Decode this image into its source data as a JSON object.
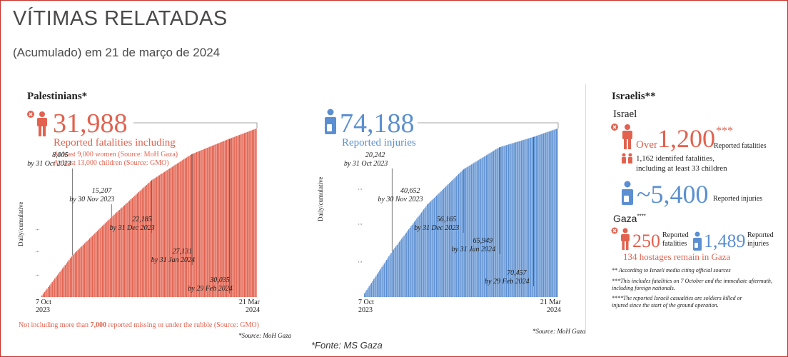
{
  "header": {
    "title": "VÍTIMAS RELATADAS",
    "subtitle": "(Acumulado) em 21 de março de 2024"
  },
  "palestinians": {
    "heading": "Palestinians*",
    "fatalities": "31,988",
    "fatalities_label": "Reported fatalities including",
    "women_note": "At least 9,000 women (Source: MoH Gaza)",
    "children_note": "At least 13,000 children (Source: GMO)",
    "injuries": "74,188",
    "injuries_label": "Reported injuries",
    "missing_prefix": "Not including more than ",
    "missing_count": "7,000",
    "missing_suffix": " reported missing or under the rubble (Source: GMO)",
    "source_left": "*Source: MoH Gaza",
    "source_right": "*Source: MoH Gaza"
  },
  "israelis": {
    "heading": "Israelis**",
    "israel_label": "Israel",
    "over_word": "Over",
    "over_number": "1,200",
    "over_stars": "***",
    "over_label": "Reported fatalities",
    "identified_line1": "1,162 identifed fatalities,",
    "identified_line2": "including at least 33 children",
    "injuries_number": "~5,400",
    "injuries_label": "Reported injuries",
    "gaza_label": "Gaza",
    "gaza_stars": "****",
    "gaza_fatalities": "250",
    "gaza_fatalities_label_1": "Reported",
    "gaza_fatalities_label_2": "fatalities",
    "gaza_injuries": "1,489",
    "gaza_injuries_label_1": "Reported",
    "gaza_injuries_label_2": "injuries",
    "hostages": "134 hostages remain in Gaza",
    "note1": "** According to Israeli media citing official sources",
    "note2a": "***This includes fatalities on 7 October and the immediate aftermath,",
    "note2b": "including foreign nationals.",
    "note3a": "****The reported Israeli casualties are soldiers killed or",
    "note3b": "injured since the start of the ground operation."
  },
  "footer": {
    "fonte": "*Fonte: MS Gaza"
  },
  "colors": {
    "red": "#e2624f",
    "blue": "#5b8fd1",
    "border": "#c8302a"
  },
  "chart_data": [
    {
      "type": "bar",
      "name": "fatalities",
      "ylabel": "Daily/cumulative",
      "x_start": "7 Oct 2023",
      "x_end": "21 Mar 2024",
      "x_start_label": [
        "7 Oct",
        "2023"
      ],
      "x_end_label": [
        "21 Mar",
        "2024"
      ],
      "start_value": 300,
      "end_value": 31988,
      "ylim": [
        0,
        32000
      ],
      "annotations": [
        {
          "date": "31 Oct 2023",
          "value": 8005,
          "value_label": "8,005",
          "date_label": "by 31 Oct 2023"
        },
        {
          "date": "30 Nov 2023",
          "value": 15207,
          "value_label": "15,207",
          "date_label": "by 30 Nov 2023"
        },
        {
          "date": "31 Dec 2023",
          "value": 22185,
          "value_label": "22,185",
          "date_label": "by 31 Dec 2023"
        },
        {
          "date": "31 Jan 2024",
          "value": 27131,
          "value_label": "27,131",
          "date_label": "by 31 Jan 2024"
        },
        {
          "date": "29 Feb 2024",
          "value": 30035,
          "value_label": "30,035",
          "date_label": "by 29 Feb 2024"
        }
      ],
      "color": "#e2624f"
    },
    {
      "type": "bar",
      "name": "injuries",
      "ylabel": "Daily/cumulative",
      "x_start": "7 Oct 2023",
      "x_end": "21 Mar 2024",
      "x_start_label": [
        "7 Oct",
        "2023"
      ],
      "x_end_label": [
        "21 Mar",
        "2024"
      ],
      "start_value": 1600,
      "end_value": 74188,
      "ylim": [
        0,
        74188
      ],
      "annotations": [
        {
          "date": "31 Oct 2023",
          "value": 20242,
          "value_label": "20,242",
          "date_label": "by 31 Oct 2023"
        },
        {
          "date": "30 Nov 2023",
          "value": 40652,
          "value_label": "40,652",
          "date_label": "by 30 Nov 2023"
        },
        {
          "date": "31 Dec 2023",
          "value": 56165,
          "value_label": "56,165",
          "date_label": "by 31 Dec 2023"
        },
        {
          "date": "31 Jan 2024",
          "value": 65949,
          "value_label": "65,949",
          "date_label": "by 31 Jan 2024"
        },
        {
          "date": "29 Feb 2024",
          "value": 70457,
          "value_label": "70,457",
          "date_label": "by 29 Feb 2024"
        }
      ],
      "color": "#5b8fd1"
    }
  ]
}
